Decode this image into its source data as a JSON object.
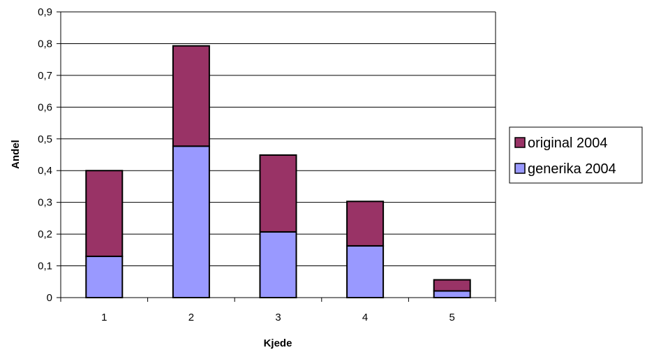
{
  "chart_data": {
    "type": "bar",
    "stacked": true,
    "categories": [
      "1",
      "2",
      "3",
      "4",
      "5"
    ],
    "series": [
      {
        "name": "generika 2004",
        "values": [
          0.13,
          0.477,
          0.207,
          0.163,
          0.021
        ]
      },
      {
        "name": "original 2004",
        "values": [
          0.27,
          0.316,
          0.242,
          0.14,
          0.035
        ]
      }
    ],
    "legend_order": [
      "original 2004",
      "generika 2004"
    ],
    "colors": {
      "original 2004": "#993366",
      "generika 2004": "#9999FF"
    },
    "title": "",
    "xlabel": "Kjede",
    "ylabel": "Andel",
    "ylim": [
      0,
      0.9
    ],
    "yticks": [
      0,
      0.1,
      0.2,
      0.3,
      0.4,
      0.5,
      0.6,
      0.7,
      0.8,
      0.9
    ],
    "ytick_labels": [
      "0",
      "0,1",
      "0,2",
      "0,3",
      "0,4",
      "0,5",
      "0,6",
      "0,7",
      "0,8",
      "0,9"
    ],
    "grid": true,
    "legend_position": "right"
  }
}
